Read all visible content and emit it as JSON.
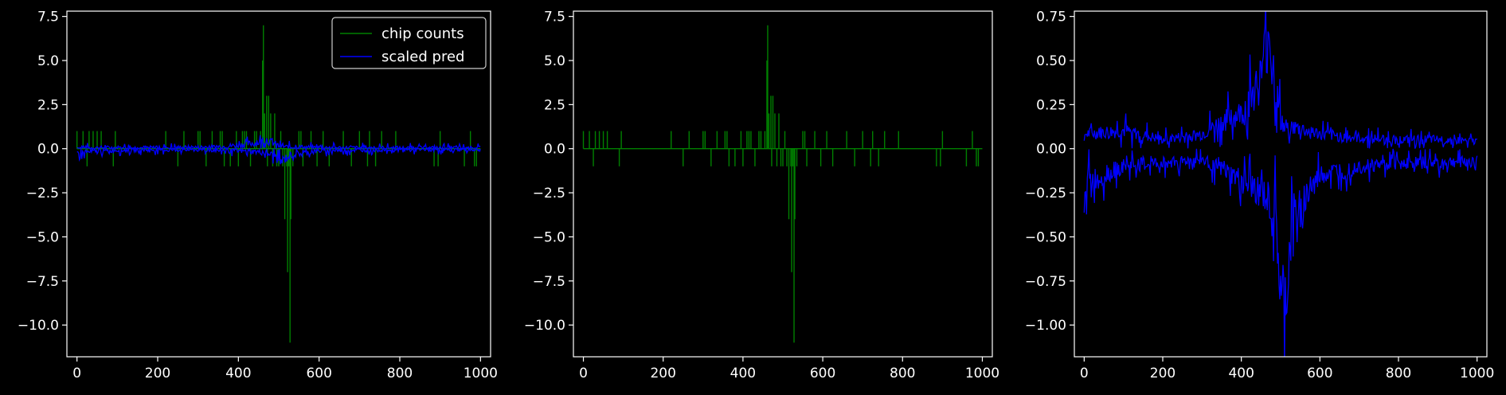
{
  "chart_data": [
    {
      "type": "line",
      "title": "",
      "xlabel": "",
      "ylabel": "",
      "xlim": [
        -25,
        1025
      ],
      "ylim": [
        -11.8,
        7.8
      ],
      "xticks": [
        0,
        200,
        400,
        600,
        800,
        1000
      ],
      "xtick_labels": [
        "0",
        "200",
        "400",
        "600",
        "800",
        "1000"
      ],
      "yticks": [
        7.5,
        5.0,
        2.5,
        0.0,
        -2.5,
        -5.0,
        -7.5,
        -10.0
      ],
      "ytick_labels": [
        "7.5",
        "5.0",
        "2.5",
        "0.0",
        "−2.5",
        "−5.0",
        "−7.5",
        "−10.0"
      ],
      "legend": {
        "placement": "top-right",
        "entries": [
          {
            "label": "chip counts",
            "color": "#008000"
          },
          {
            "label": "scaled pred",
            "color": "#0000ff"
          }
        ]
      },
      "series": [
        {
          "name": "chip counts",
          "color": "#008000",
          "kind": "spikes",
          "x": [
            0,
            15,
            25,
            30,
            40,
            50,
            60,
            90,
            95,
            220,
            250,
            265,
            300,
            305,
            320,
            335,
            355,
            360,
            365,
            380,
            395,
            400,
            410,
            415,
            420,
            430,
            440,
            445,
            455,
            460,
            462,
            465,
            470,
            472,
            475,
            480,
            485,
            490,
            495,
            500,
            505,
            510,
            515,
            520,
            522,
            525,
            528,
            530,
            535,
            550,
            555,
            560,
            580,
            595,
            610,
            625,
            660,
            680,
            700,
            720,
            725,
            740,
            755,
            790,
            885,
            895,
            900,
            960,
            975,
            985,
            990
          ],
          "y": [
            1,
            1,
            -1,
            1,
            1,
            1,
            1,
            -1,
            1,
            1,
            -1,
            1,
            1,
            1,
            -1,
            1,
            1,
            1,
            -1,
            -1,
            1,
            -1,
            1,
            1,
            1,
            -1,
            1,
            1,
            1,
            5,
            7,
            2,
            3,
            -1,
            3,
            2,
            -1,
            2,
            -1,
            -1,
            1,
            -1,
            -4,
            -1,
            -7,
            -1,
            -11,
            -4,
            -1,
            1,
            1,
            -1,
            1,
            -1,
            1,
            -1,
            1,
            -1,
            1,
            -1,
            1,
            -1,
            1,
            1,
            -1,
            -1,
            1,
            -1,
            1,
            -1,
            -1
          ]
        },
        {
          "name": "scaled pred",
          "color": "#0000ff",
          "kind": "envelope",
          "x": [
            0,
            100,
            200,
            300,
            350,
            400,
            450,
            470,
            490,
            505,
            530,
            600,
            700,
            800,
            900,
            1000
          ],
          "upper": [
            0.05,
            0.06,
            0.05,
            0.08,
            0.1,
            0.2,
            0.35,
            0.45,
            0.3,
            0.12,
            0.1,
            0.06,
            0.05,
            0.04,
            0.04,
            0.03
          ],
          "lower": [
            -0.25,
            -0.08,
            -0.06,
            -0.06,
            -0.08,
            -0.12,
            -0.18,
            -0.25,
            -0.4,
            -0.75,
            -0.35,
            -0.12,
            -0.07,
            -0.06,
            -0.05,
            -0.05
          ]
        }
      ]
    },
    {
      "type": "line",
      "title": "",
      "xlabel": "",
      "ylabel": "",
      "xlim": [
        -25,
        1025
      ],
      "ylim": [
        -11.8,
        7.8
      ],
      "xticks": [
        0,
        200,
        400,
        600,
        800,
        1000
      ],
      "xtick_labels": [
        "0",
        "200",
        "400",
        "600",
        "800",
        "1000"
      ],
      "yticks": [
        7.5,
        5.0,
        2.5,
        0.0,
        -2.5,
        -5.0,
        -7.5,
        -10.0
      ],
      "ytick_labels": [
        "7.5",
        "5.0",
        "2.5",
        "0.0",
        "−2.5",
        "−5.0",
        "−7.5",
        "−10.0"
      ],
      "series": [
        {
          "color": "#008000",
          "kind": "spikes",
          "x": [
            0,
            15,
            25,
            30,
            40,
            50,
            60,
            90,
            95,
            220,
            250,
            265,
            300,
            305,
            320,
            335,
            355,
            360,
            365,
            380,
            395,
            400,
            410,
            415,
            420,
            430,
            440,
            445,
            455,
            460,
            462,
            465,
            470,
            472,
            475,
            480,
            485,
            490,
            495,
            500,
            505,
            510,
            515,
            520,
            522,
            525,
            528,
            530,
            535,
            550,
            555,
            560,
            580,
            595,
            610,
            625,
            660,
            680,
            700,
            720,
            725,
            740,
            755,
            790,
            885,
            895,
            900,
            960,
            975,
            985,
            990
          ],
          "y": [
            1,
            1,
            -1,
            1,
            1,
            1,
            1,
            -1,
            1,
            1,
            -1,
            1,
            1,
            1,
            -1,
            1,
            1,
            1,
            -1,
            -1,
            1,
            -1,
            1,
            1,
            1,
            -1,
            1,
            1,
            1,
            5,
            7,
            2,
            3,
            -1,
            3,
            2,
            -1,
            2,
            -1,
            -1,
            1,
            -1,
            -4,
            -1,
            -7,
            -1,
            -11,
            -4,
            -1,
            1,
            1,
            -1,
            1,
            -1,
            1,
            -1,
            1,
            -1,
            1,
            -1,
            1,
            -1,
            1,
            1,
            -1,
            -1,
            1,
            -1,
            1,
            -1,
            -1
          ]
        }
      ]
    },
    {
      "type": "line",
      "title": "",
      "xlabel": "",
      "ylabel": "",
      "xlim": [
        -25,
        1025
      ],
      "ylim": [
        -1.18,
        0.78
      ],
      "xticks": [
        0,
        200,
        400,
        600,
        800,
        1000
      ],
      "xtick_labels": [
        "0",
        "200",
        "400",
        "600",
        "800",
        "1000"
      ],
      "yticks": [
        0.75,
        0.5,
        0.25,
        0.0,
        -0.25,
        -0.5,
        -0.75,
        -1.0
      ],
      "ytick_labels": [
        "0.75",
        "0.50",
        "0.25",
        "0.00",
        "−0.25",
        "−0.50",
        "−0.75",
        "−1.00"
      ],
      "series": [
        {
          "color": "#0000ff",
          "kind": "envelope",
          "x": [
            0,
            100,
            200,
            300,
            350,
            400,
            450,
            470,
            490,
            505,
            530,
            600,
            700,
            800,
            900,
            1000
          ],
          "upper": [
            0.08,
            0.1,
            0.05,
            0.08,
            0.15,
            0.2,
            0.4,
            0.68,
            0.3,
            0.12,
            0.12,
            0.08,
            0.06,
            0.05,
            0.05,
            0.04
          ],
          "lower": [
            -0.2,
            -0.1,
            -0.08,
            -0.06,
            -0.12,
            -0.18,
            -0.25,
            -0.3,
            -0.45,
            -1.08,
            -0.4,
            -0.15,
            -0.1,
            -0.08,
            -0.08,
            -0.07
          ]
        }
      ]
    }
  ]
}
